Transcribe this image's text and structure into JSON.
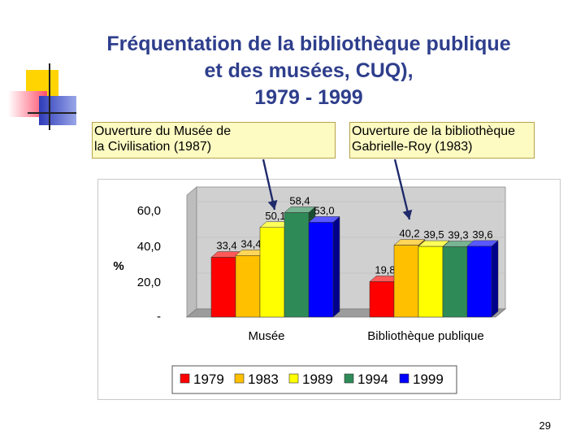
{
  "slide": {
    "title_lines": [
      "Fréquentation de la bibliothèque publique",
      "et des musées, CUQ),",
      "1979 - 1999"
    ],
    "page_number": "29",
    "annotations": [
      {
        "line1": "Ouverture du Musée de",
        "line2": "la Civilisation (1987)"
      },
      {
        "line1": "Ouverture de la bibliothèque",
        "line2": "Gabrielle-Roy (1983)"
      }
    ]
  },
  "colors": {
    "title": "#2e3e8c",
    "annotation_bg": "#fdfbc2",
    "series": [
      "#ff0000",
      "#ffc000",
      "#ffff00",
      "#2e8b57",
      "#0000ff"
    ]
  },
  "chart_data": {
    "type": "bar",
    "three_d": true,
    "categories": [
      "Musée",
      "Bibliothèque publique"
    ],
    "series": [
      {
        "name": "1979",
        "values": [
          33.4,
          19.8
        ]
      },
      {
        "name": "1983",
        "values": [
          34.4,
          40.2
        ]
      },
      {
        "name": "1989",
        "values": [
          50.1,
          39.5
        ]
      },
      {
        "name": "1994",
        "values": [
          58.4,
          39.3
        ]
      },
      {
        "name": "1999",
        "values": [
          53.0,
          39.6
        ]
      }
    ],
    "data_labels": [
      [
        "33,4",
        "34,4",
        "50,1",
        "58,4",
        "53,0"
      ],
      [
        "19,8",
        "40,2",
        "39,5",
        "39,3",
        "39,6"
      ]
    ],
    "y_ticks": [
      "-",
      "20,0",
      "40,0",
      "60,0"
    ],
    "y_tick_values": [
      0,
      20,
      40,
      60
    ],
    "ylabel": "%",
    "ylim": [
      0,
      60
    ],
    "legend_position": "bottom",
    "grid": false
  }
}
